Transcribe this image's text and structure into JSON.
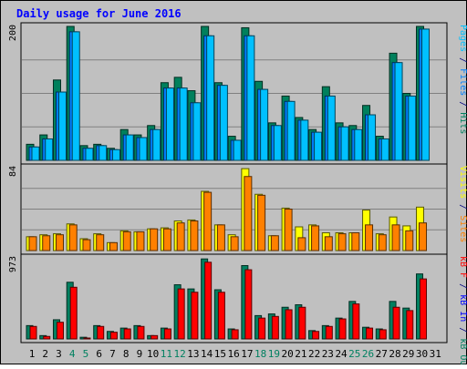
{
  "chart_data": {
    "type": "bar",
    "title": "Daily usage for June 2016",
    "categories": [
      "1",
      "2",
      "3",
      "4",
      "5",
      "6",
      "7",
      "8",
      "9",
      "10",
      "11",
      "12",
      "13",
      "14",
      "15",
      "16",
      "17",
      "18",
      "19",
      "20",
      "21",
      "22",
      "23",
      "24",
      "25",
      "26",
      "27",
      "28",
      "29",
      "30",
      "31"
    ],
    "weekend_days": [
      "4",
      "5",
      "11",
      "12",
      "18",
      "19",
      "25",
      "26"
    ],
    "panels": [
      {
        "name": "top",
        "y_tick_label": "200",
        "ymax": 200,
        "grid": true,
        "right_label": [
          {
            "text": "Pages",
            "color": "#00c0ff"
          },
          {
            "text": " / ",
            "color": "#000080"
          },
          {
            "text": "Files",
            "color": "#0080ff"
          },
          {
            "text": " / ",
            "color": "#000080"
          },
          {
            "text": "Hits",
            "color": "#008060"
          }
        ],
        "series": [
          {
            "name": "Hits",
            "color": "#00805c",
            "values": [
              24,
              38,
              120,
              200,
              22,
              24,
              18,
              46,
              38,
              52,
              116,
              124,
              104,
              200,
              116,
              36,
              198,
              118,
              56,
              96,
              64,
              46,
              110,
              56,
              52,
              82,
              36,
              160,
              100,
              204,
              0
            ]
          },
          {
            "name": "Files",
            "color": "#0080ff",
            "values": [
              20,
              32,
              102,
              192,
              18,
              22,
              16,
              38,
              34,
              46,
              108,
              108,
              86,
              186,
              112,
              30,
              186,
              106,
              52,
              88,
              60,
              42,
              96,
              50,
              46,
              68,
              32,
              146,
              96,
              196,
              0
            ]
          },
          {
            "name": "Pages",
            "color": "#00c0ff",
            "values": [
              20,
              32,
              102,
              192,
              18,
              22,
              16,
              38,
              34,
              46,
              108,
              108,
              86,
              186,
              112,
              30,
              186,
              106,
              52,
              88,
              60,
              42,
              96,
              50,
              46,
              68,
              32,
              146,
              96,
              196,
              0
            ]
          }
        ]
      },
      {
        "name": "middle",
        "y_tick_label": "84",
        "ymax": 84,
        "grid": true,
        "right_label": [
          {
            "text": "Visits",
            "color": "#ffff00"
          },
          {
            "text": " / ",
            "color": "#000080"
          },
          {
            "text": "Sites",
            "color": "#ff8000"
          }
        ],
        "series": [
          {
            "name": "Visits",
            "color": "#ffff00",
            "values": [
              14,
              16,
              17,
              27,
              12,
              17,
              8,
              20,
              19,
              22,
              23,
              30,
              31,
              60,
              26,
              16,
              83,
              57,
              15,
              43,
              24,
              26,
              18,
              18,
              18,
              41,
              17,
              34,
              25,
              44,
              0
            ]
          },
          {
            "name": "Sites",
            "color": "#ff8000",
            "values": [
              14,
              15,
              16,
              26,
              11,
              16,
              8,
              19,
              19,
              22,
              22,
              28,
              30,
              59,
              26,
              14,
              75,
              56,
              15,
              42,
              13,
              25,
              14,
              17,
              18,
              26,
              16,
              26,
              20,
              28,
              0
            ]
          }
        ]
      },
      {
        "name": "bottom",
        "y_tick_label": "973",
        "ymax": 973,
        "grid": false,
        "right_label": [
          {
            "text": "kB F",
            "color": "#ff0000"
          },
          {
            "text": " / ",
            "color": "#000080"
          },
          {
            "text": "kB In",
            "color": "#0000ff"
          },
          {
            "text": " / ",
            "color": "#000080"
          },
          {
            "text": "kB Out",
            "color": "#008060"
          }
        ],
        "series": [
          {
            "name": "kB Out",
            "color": "#008060",
            "values": [
              160,
              40,
              230,
              680,
              20,
              160,
              90,
              130,
              160,
              40,
              130,
              650,
              600,
              960,
              590,
              120,
              880,
              280,
              300,
              380,
              410,
              100,
              160,
              250,
              450,
              140,
              120,
              450,
              370,
              780,
              0
            ]
          },
          {
            "name": "kB F",
            "color": "#ff0000",
            "values": [
              150,
              30,
              200,
              620,
              10,
              150,
              80,
              120,
              150,
              40,
              120,
              600,
              560,
              920,
              560,
              110,
              830,
              250,
              270,
              350,
              380,
              90,
              150,
              240,
              420,
              130,
              110,
              380,
              340,
              720,
              0
            ]
          }
        ]
      }
    ]
  }
}
